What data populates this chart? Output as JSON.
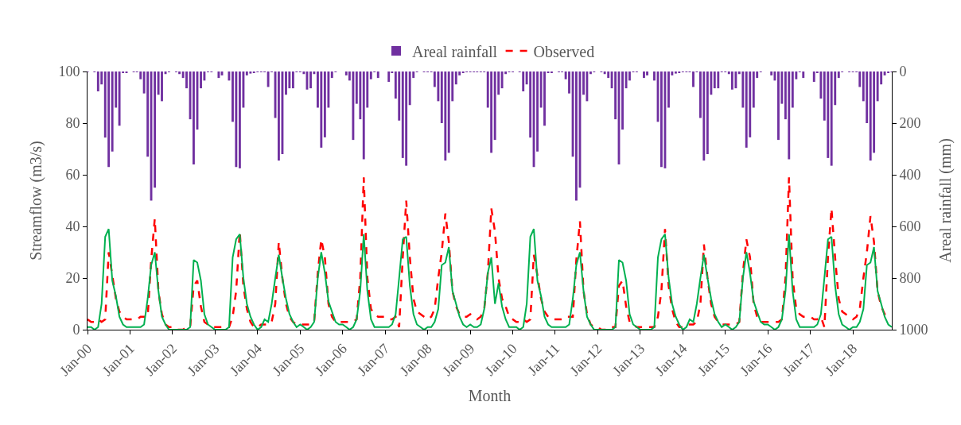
{
  "chart_data": {
    "type": "line",
    "xlabel": "Month",
    "ylabel": "Streamflow (m3/s)",
    "y2label": "Areal rainfall (mm)",
    "x": [
      "2000-01",
      "2000-02",
      "2000-03",
      "2000-04",
      "2000-05",
      "2000-06",
      "2000-07",
      "2000-08",
      "2000-09",
      "2000-10",
      "2000-11",
      "2000-12",
      "2001-01",
      "2001-02",
      "2001-03",
      "2001-04",
      "2001-05",
      "2001-06",
      "2001-07",
      "2001-08",
      "2001-09",
      "2001-10",
      "2001-11",
      "2001-12",
      "2002-01",
      "2002-02",
      "2002-03",
      "2002-04",
      "2002-05",
      "2002-06",
      "2002-07",
      "2002-08",
      "2002-09",
      "2002-10",
      "2002-11",
      "2002-12",
      "2003-01",
      "2003-02",
      "2003-03",
      "2003-04",
      "2003-05",
      "2003-06",
      "2003-07",
      "2003-08",
      "2003-09",
      "2003-10",
      "2003-11",
      "2003-12",
      "2004-01",
      "2004-02",
      "2004-03",
      "2004-04",
      "2004-05",
      "2004-06",
      "2004-07",
      "2004-08",
      "2004-09",
      "2004-10",
      "2004-11",
      "2004-12",
      "2005-01",
      "2005-02",
      "2005-03",
      "2005-04",
      "2005-05",
      "2005-06",
      "2005-07",
      "2005-08",
      "2005-09",
      "2005-10",
      "2005-11",
      "2005-12",
      "2006-01",
      "2006-02",
      "2006-03",
      "2006-04",
      "2006-05",
      "2006-06",
      "2006-07",
      "2006-08",
      "2006-09",
      "2006-10",
      "2006-11",
      "2006-12",
      "2007-01",
      "2007-02",
      "2007-03",
      "2007-04",
      "2007-05",
      "2007-06",
      "2007-07",
      "2007-08",
      "2007-09",
      "2007-10",
      "2007-11",
      "2007-12",
      "2008-01",
      "2008-02",
      "2008-03",
      "2008-04",
      "2008-05",
      "2008-06",
      "2008-07",
      "2008-08",
      "2008-09",
      "2008-10",
      "2008-11",
      "2008-12",
      "2009-01",
      "2009-02",
      "2009-03",
      "2009-04",
      "2009-05",
      "2009-06",
      "2009-07",
      "2009-08",
      "2009-09",
      "2009-10",
      "2009-11",
      "2009-12",
      "2010-01",
      "2010-02",
      "2010-03",
      "2010-04",
      "2010-05",
      "2010-06",
      "2010-07",
      "2010-08",
      "2010-09",
      "2010-10",
      "2010-11",
      "2010-12",
      "2011-01",
      "2011-02",
      "2011-03",
      "2011-04",
      "2011-05",
      "2011-06",
      "2011-07",
      "2011-08",
      "2011-09",
      "2011-10",
      "2011-11",
      "2011-12",
      "2012-01",
      "2012-02",
      "2012-03",
      "2012-04",
      "2012-05",
      "2012-06",
      "2012-07",
      "2012-08",
      "2012-09",
      "2012-10",
      "2012-11",
      "2012-12",
      "2013-01",
      "2013-02",
      "2013-03",
      "2013-04",
      "2013-05",
      "2013-06",
      "2013-07",
      "2013-08",
      "2013-09",
      "2013-10",
      "2013-11",
      "2013-12",
      "2014-01",
      "2014-02",
      "2014-03",
      "2014-04",
      "2014-05",
      "2014-06",
      "2014-07",
      "2014-08",
      "2014-09",
      "2014-10",
      "2014-11",
      "2014-12",
      "2015-01",
      "2015-02",
      "2015-03",
      "2015-04",
      "2015-05",
      "2015-06",
      "2015-07",
      "2015-08",
      "2015-09",
      "2015-10",
      "2015-11",
      "2015-12",
      "2016-01",
      "2016-02",
      "2016-03",
      "2016-04",
      "2016-05",
      "2016-06",
      "2016-07",
      "2016-08",
      "2016-09",
      "2016-10",
      "2016-11",
      "2016-12",
      "2017-01",
      "2017-02",
      "2017-03",
      "2017-04",
      "2017-05",
      "2017-06",
      "2017-07",
      "2017-08",
      "2017-09",
      "2017-10",
      "2017-11",
      "2017-12",
      "2018-01",
      "2018-02",
      "2018-03",
      "2018-04",
      "2018-05",
      "2018-06",
      "2018-07",
      "2018-08",
      "2018-09",
      "2018-10",
      "2018-11",
      "2018-12"
    ],
    "series": [
      {
        "name": "Areal rainfall",
        "type": "bar",
        "axis": "y2",
        "color": "#7030a0",
        "values": [
          3,
          0,
          3,
          77,
          50,
          256,
          370,
          310,
          140,
          210,
          5,
          5,
          0,
          3,
          3,
          30,
          85,
          330,
          500,
          450,
          90,
          115,
          10,
          3,
          0,
          3,
          10,
          25,
          65,
          185,
          360,
          225,
          65,
          35,
          3,
          3,
          0,
          25,
          15,
          0,
          35,
          195,
          370,
          375,
          140,
          15,
          8,
          5,
          3,
          3,
          3,
          60,
          3,
          180,
          345,
          320,
          90,
          65,
          65,
          3,
          3,
          10,
          70,
          65,
          10,
          140,
          295,
          255,
          140,
          25,
          3,
          0,
          0,
          15,
          35,
          265,
          125,
          185,
          340,
          140,
          30,
          3,
          25,
          0,
          0,
          40,
          5,
          105,
          190,
          335,
          365,
          130,
          25,
          3,
          0,
          3,
          3,
          3,
          60,
          115,
          200,
          345,
          315,
          115,
          50,
          15,
          5,
          3,
          3,
          3,
          3,
          3,
          3,
          140,
          315,
          265,
          90,
          65,
          10,
          3,
          3,
          0,
          3,
          77,
          50,
          256,
          370,
          310,
          140,
          210,
          5,
          5,
          0,
          3,
          3,
          30,
          85,
          330,
          500,
          450,
          90,
          115,
          10,
          3,
          0,
          3,
          10,
          25,
          65,
          185,
          360,
          225,
          65,
          35,
          3,
          3,
          0,
          25,
          15,
          0,
          35,
          195,
          370,
          375,
          140,
          15,
          8,
          5,
          3,
          3,
          3,
          60,
          3,
          180,
          345,
          320,
          90,
          65,
          65,
          3,
          3,
          10,
          70,
          65,
          10,
          140,
          295,
          255,
          140,
          25,
          3,
          0,
          0,
          15,
          35,
          265,
          125,
          185,
          340,
          140,
          30,
          3,
          25,
          0,
          0,
          40,
          5,
          105,
          190,
          335,
          365,
          130,
          25,
          3,
          0,
          3,
          3,
          3,
          60,
          115,
          200,
          345,
          315,
          115,
          50,
          15,
          5,
          3
        ]
      },
      {
        "name": "Observed",
        "line_style": "dashed",
        "color": "#ff0000",
        "values": [
          4,
          3,
          3,
          4,
          3,
          4,
          30,
          21,
          12,
          7,
          5,
          4,
          4,
          4,
          4,
          5,
          5,
          5,
          27,
          43,
          15,
          6,
          2,
          1,
          1,
          0,
          0,
          0,
          1,
          1,
          17,
          19,
          9,
          3,
          2,
          1,
          1,
          1,
          1,
          1,
          1,
          5,
          15,
          38,
          17,
          8,
          3,
          1,
          1,
          2,
          2,
          2,
          3,
          10,
          34,
          20,
          10,
          5,
          3,
          2,
          2,
          2,
          2,
          2,
          3,
          22,
          35,
          28,
          10,
          5,
          3,
          3,
          3,
          3,
          3,
          3,
          4,
          20,
          59,
          20,
          8,
          6,
          5,
          5,
          5,
          4,
          4,
          5,
          1,
          28,
          50,
          28,
          12,
          7,
          6,
          5,
          4,
          5,
          8,
          20,
          30,
          45,
          34,
          15,
          9,
          6,
          5,
          5,
          6,
          5,
          4,
          5,
          8,
          22,
          47,
          38,
          20,
          12,
          9,
          5,
          4,
          3,
          3,
          4,
          3,
          4,
          29,
          21,
          12,
          7,
          5,
          4,
          4,
          4,
          4,
          5,
          5,
          5,
          27,
          42,
          15,
          6,
          2,
          1,
          1,
          0,
          0,
          0,
          1,
          1,
          17,
          19,
          9,
          3,
          2,
          1,
          1,
          1,
          1,
          1,
          1,
          5,
          15,
          39,
          17,
          8,
          3,
          1,
          1,
          2,
          2,
          2,
          3,
          10,
          33,
          20,
          10,
          5,
          3,
          2,
          2,
          2,
          2,
          2,
          3,
          22,
          35,
          28,
          10,
          5,
          3,
          3,
          3,
          3,
          3,
          3,
          4,
          20,
          59,
          20,
          8,
          6,
          5,
          5,
          5,
          4,
          4,
          5,
          1,
          28,
          47,
          28,
          12,
          7,
          6,
          5,
          4,
          5,
          8,
          20,
          30,
          44,
          34,
          15,
          9,
          6,
          5,
          5
        ]
      },
      {
        "line_style": "solid",
        "color": "#00b050",
        "values": [
          1,
          1,
          0,
          1,
          10,
          36,
          39,
          19,
          13,
          5,
          2,
          1,
          1,
          1,
          1,
          1,
          2,
          12,
          25,
          30,
          15,
          5,
          2,
          0,
          0,
          0,
          0,
          0,
          0,
          1,
          27,
          26,
          19,
          6,
          2,
          1,
          0,
          0,
          0,
          0,
          1,
          28,
          35,
          37,
          20,
          10,
          5,
          2,
          0,
          1,
          4,
          3,
          10,
          20,
          29,
          20,
          12,
          6,
          3,
          1,
          2,
          1,
          0,
          1,
          3,
          20,
          30,
          22,
          11,
          7,
          3,
          2,
          2,
          1,
          0,
          1,
          4,
          15,
          37,
          15,
          4,
          1,
          1,
          1,
          1,
          1,
          2,
          6,
          20,
          35,
          36,
          17,
          6,
          2,
          1,
          0,
          1,
          1,
          3,
          8,
          25,
          26,
          32,
          15,
          10,
          5,
          2,
          1,
          2,
          1,
          1,
          2,
          8,
          22,
          28,
          10,
          18,
          9,
          4,
          1,
          1,
          1,
          0,
          1,
          10,
          36,
          39,
          19,
          13,
          5,
          2,
          1,
          1,
          1,
          1,
          1,
          2,
          12,
          25,
          30,
          15,
          5,
          2,
          0,
          0,
          0,
          0,
          0,
          0,
          1,
          27,
          26,
          19,
          6,
          2,
          1,
          0,
          0,
          0,
          0,
          1,
          28,
          35,
          37,
          20,
          10,
          5,
          2,
          0,
          1,
          4,
          3,
          10,
          20,
          29,
          20,
          12,
          6,
          3,
          1,
          2,
          1,
          0,
          1,
          3,
          20,
          30,
          22,
          11,
          7,
          3,
          2,
          2,
          1,
          0,
          1,
          4,
          15,
          37,
          15,
          4,
          1,
          1,
          1,
          1,
          1,
          2,
          6,
          20,
          35,
          36,
          17,
          6,
          2,
          1,
          0,
          1,
          1,
          3,
          8,
          25,
          26,
          32,
          15,
          10,
          5,
          2,
          1
        ]
      }
    ],
    "xlim": [
      "2000-01",
      "2018-12"
    ],
    "xticks": [
      {
        "value": "2000-01",
        "label": "Jan-00"
      },
      {
        "value": "2001-01",
        "label": "Jan-01"
      },
      {
        "value": "2002-01",
        "label": "Jan-02"
      },
      {
        "value": "2003-01",
        "label": "Jan-03"
      },
      {
        "value": "2004-01",
        "label": "Jan-04"
      },
      {
        "value": "2005-01",
        "label": "Jan-05"
      },
      {
        "value": "2006-01",
        "label": "Jan-06"
      },
      {
        "value": "2007-01",
        "label": "Jan-07"
      },
      {
        "value": "2008-01",
        "label": "Jan-08"
      },
      {
        "value": "2009-01",
        "label": "Jan-09"
      },
      {
        "value": "2010-01",
        "label": "Jan-10"
      },
      {
        "value": "2011-01",
        "label": "Jan-11"
      },
      {
        "value": "2012-01",
        "label": "Jan-12"
      },
      {
        "value": "2013-01",
        "label": "Jan-13"
      },
      {
        "value": "2014-01",
        "label": "Jan-14"
      },
      {
        "value": "2015-01",
        "label": "Jan-15"
      },
      {
        "value": "2016-01",
        "label": "Jan-16"
      },
      {
        "value": "2017-01",
        "label": "Jan-17"
      },
      {
        "value": "2018-01",
        "label": "Jan-18"
      }
    ],
    "ylim": [
      0,
      100
    ],
    "yticks": [
      0,
      20,
      40,
      60,
      80,
      100
    ],
    "y2lim": [
      1000,
      0
    ],
    "y2ticks": [
      0,
      200,
      400,
      600,
      800,
      1000
    ],
    "grid": false,
    "legend": "top",
    "marker": "none"
  }
}
